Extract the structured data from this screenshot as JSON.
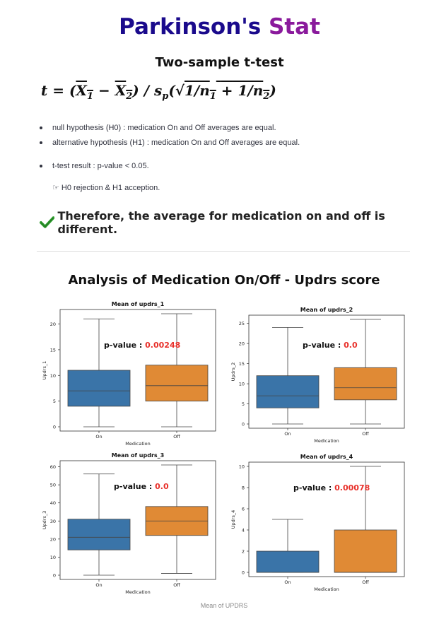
{
  "header": {
    "title_part1": "Parkinson's",
    "title_part2": "Stat",
    "subtitle": "Two-sample t-test"
  },
  "formula": {
    "lhs": "t",
    "equals": "=",
    "x1": "X",
    "x1_sub": "1",
    "minus": "−",
    "x2": "X",
    "x2_sub": "2",
    "slash": "/",
    "s": "s",
    "s_sub": "p",
    "root": "√",
    "one_a": "1/n",
    "n1_sub": "1",
    "plus": "+",
    "one_b": "1/n",
    "n2_sub": "2"
  },
  "bullets": [
    "null hypothesis (H0) : medication On and Off averages are equal.",
    "alternative hypothesis (H1) : medication On and Off averages are equal.",
    "t-test result : p-value < 0.05."
  ],
  "rejection": "☞ H0 rejection & H1 acception.",
  "conclusion": "Therefore, the average for medication on and off is different.",
  "section_title": "Analysis of Medication On/Off - Updrs score",
  "caption": "Mean of UPDRS",
  "colors": {
    "title_dark": "#1a0a8c",
    "title_purple": "#8a1a9c",
    "on_box": "#3a74a8",
    "off_box": "#e08a35",
    "pvalue": "#e8302a",
    "check": "#2e9e2e"
  },
  "chart_data": [
    {
      "type": "box",
      "title": "Mean of updrs_1",
      "xlabel": "Medication",
      "ylabel": "Updrs_1",
      "categories": [
        "On",
        "Off"
      ],
      "ylim": [
        0,
        22
      ],
      "yticks": [
        0,
        5,
        10,
        15,
        20
      ],
      "boxes": [
        {
          "name": "On",
          "min": 0,
          "q1": 4,
          "median": 7,
          "q3": 11,
          "max": 21
        },
        {
          "name": "Off",
          "min": 0,
          "q1": 5,
          "median": 8,
          "q3": 12,
          "max": 22
        }
      ],
      "pvalue_label": "p-value :",
      "pvalue": "0.00248"
    },
    {
      "type": "box",
      "title": "Mean of updrs_2",
      "xlabel": "Medication",
      "ylabel": "Updrs_2",
      "categories": [
        "On",
        "Off"
      ],
      "ylim": [
        0,
        26
      ],
      "yticks": [
        0,
        5,
        10,
        15,
        20,
        25
      ],
      "boxes": [
        {
          "name": "On",
          "min": 0,
          "q1": 4,
          "median": 7,
          "q3": 12,
          "max": 24
        },
        {
          "name": "Off",
          "min": 0,
          "q1": 6,
          "median": 9,
          "q3": 14,
          "max": 26
        }
      ],
      "pvalue_label": "p-value :",
      "pvalue": "0.0"
    },
    {
      "type": "box",
      "title": "Mean of updrs_3",
      "xlabel": "Medication",
      "ylabel": "Updrs_3",
      "categories": [
        "On",
        "Off"
      ],
      "ylim": [
        0,
        61
      ],
      "yticks": [
        0,
        10,
        20,
        30,
        40,
        50,
        60
      ],
      "boxes": [
        {
          "name": "On",
          "min": 0,
          "q1": 14,
          "median": 21,
          "q3": 31,
          "max": 56
        },
        {
          "name": "Off",
          "min": 1,
          "q1": 22,
          "median": 30,
          "q3": 38,
          "max": 61
        }
      ],
      "pvalue_label": "p-value :",
      "pvalue": "0.0"
    },
    {
      "type": "box",
      "title": "Mean of updrs_4",
      "xlabel": "Medication",
      "ylabel": "Updrs_4",
      "categories": [
        "On",
        "Off"
      ],
      "ylim": [
        0,
        10
      ],
      "yticks": [
        0,
        2,
        4,
        6,
        8,
        10
      ],
      "boxes": [
        {
          "name": "On",
          "min": 0,
          "q1": 0,
          "median": 0,
          "q3": 2,
          "max": 5
        },
        {
          "name": "Off",
          "min": 0,
          "q1": 0,
          "median": 0,
          "q3": 4,
          "max": 10
        }
      ],
      "pvalue_label": "p-value :",
      "pvalue": "0.00078"
    }
  ]
}
